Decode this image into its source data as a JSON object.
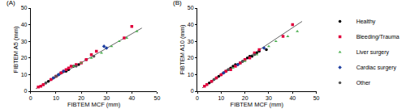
{
  "chart_data": [
    {
      "type": "scatter",
      "title": "(A)",
      "x_label": "FIBTEM MCF (mm)",
      "y_label": "FIBTEM A5 (mm)",
      "xlim": [
        0,
        50
      ],
      "xticks": [
        0,
        10,
        20,
        30,
        40,
        50
      ],
      "ylim": [
        0,
        50
      ],
      "yticks": [
        0,
        10,
        20,
        30,
        40,
        50
      ],
      "grid": false,
      "trendline": {
        "x": [
          2,
          44
        ],
        "values": [
          1.5,
          38
        ],
        "color": "#666666"
      },
      "series": [
        {
          "name": "Healthy",
          "color": "#000000",
          "marker": "circle",
          "x": [
            5,
            6,
            7,
            8,
            9,
            10,
            11,
            12,
            14,
            15,
            17,
            19,
            22
          ],
          "values": [
            4,
            5,
            6,
            7,
            8,
            9,
            10,
            11,
            12,
            13,
            15,
            16,
            19
          ]
        },
        {
          "name": "Bleeding/Trauma",
          "color": "#e0003c",
          "marker": "square",
          "x": [
            3,
            4,
            5,
            8,
            10,
            12,
            13,
            14,
            15,
            16,
            18,
            20,
            22,
            24,
            26,
            37,
            40
          ],
          "values": [
            2.5,
            3,
            4,
            7,
            9,
            11,
            12,
            13,
            14,
            15,
            16,
            17,
            19,
            22,
            24,
            32,
            39
          ]
        },
        {
          "name": "Liver surgery",
          "color": "#4caf50",
          "marker": "triangle-up",
          "x": [
            17,
            20,
            24,
            28,
            32,
            35,
            38,
            42
          ],
          "values": [
            15,
            17,
            20,
            23,
            27,
            30,
            32,
            36
          ]
        },
        {
          "name": "Cardiac surgery",
          "color": "#1f3fa0",
          "marker": "diamond",
          "x": [
            9,
            11,
            13,
            29,
            30
          ],
          "values": [
            8,
            10,
            12,
            27,
            26
          ]
        },
        {
          "name": "Other",
          "color": "#555555",
          "marker": "circle",
          "x": [
            6,
            10,
            18,
            25
          ],
          "values": [
            5,
            9,
            15,
            21
          ]
        }
      ]
    },
    {
      "type": "scatter",
      "title": "(B)",
      "x_label": "FIBTEM MCF (mm)",
      "y_label": "FIBTEM A10 (mm)",
      "xlim": [
        0,
        50
      ],
      "xticks": [
        0,
        10,
        20,
        30,
        40,
        50
      ],
      "ylim": [
        0,
        50
      ],
      "yticks": [
        0,
        10,
        20,
        30,
        40,
        50
      ],
      "grid": false,
      "legend": "right",
      "trendline": {
        "x": [
          2,
          44
        ],
        "values": [
          2,
          42
        ],
        "color": "#666666"
      },
      "series": [
        {
          "name": "Healthy",
          "color": "#000000",
          "marker": "circle",
          "x": [
            5,
            6,
            7,
            8,
            9,
            10,
            11,
            12,
            13,
            14,
            15,
            16,
            17,
            18,
            19,
            20,
            21,
            22,
            23,
            25,
            26,
            29
          ],
          "values": [
            5,
            6,
            7,
            8,
            9,
            10,
            11,
            12,
            13,
            14,
            15,
            16,
            16,
            17,
            18,
            19,
            20,
            21,
            21,
            23,
            24,
            25
          ]
        },
        {
          "name": "Bleeding/Trauma",
          "color": "#e0003c",
          "marker": "square",
          "x": [
            3,
            4,
            6,
            8,
            10,
            12,
            14,
            16,
            18,
            20,
            22,
            24,
            26,
            36,
            40
          ],
          "values": [
            3,
            4,
            6,
            8,
            10,
            12,
            13,
            15,
            17,
            19,
            20,
            23,
            25,
            33,
            40
          ]
        },
        {
          "name": "Liver surgery",
          "color": "#4caf50",
          "marker": "triangle-up",
          "x": [
            15,
            20,
            25,
            30,
            33,
            38,
            42
          ],
          "values": [
            14,
            18,
            22,
            27,
            30,
            33,
            36
          ]
        },
        {
          "name": "Cardiac surgery",
          "color": "#1f3fa0",
          "marker": "diamond",
          "x": [
            11,
            17,
            28
          ],
          "values": [
            11,
            16,
            26
          ]
        },
        {
          "name": "Other",
          "color": "#555555",
          "marker": "circle",
          "x": [
            7,
            13,
            19,
            24
          ],
          "values": [
            7,
            13,
            18,
            22
          ]
        }
      ]
    }
  ]
}
